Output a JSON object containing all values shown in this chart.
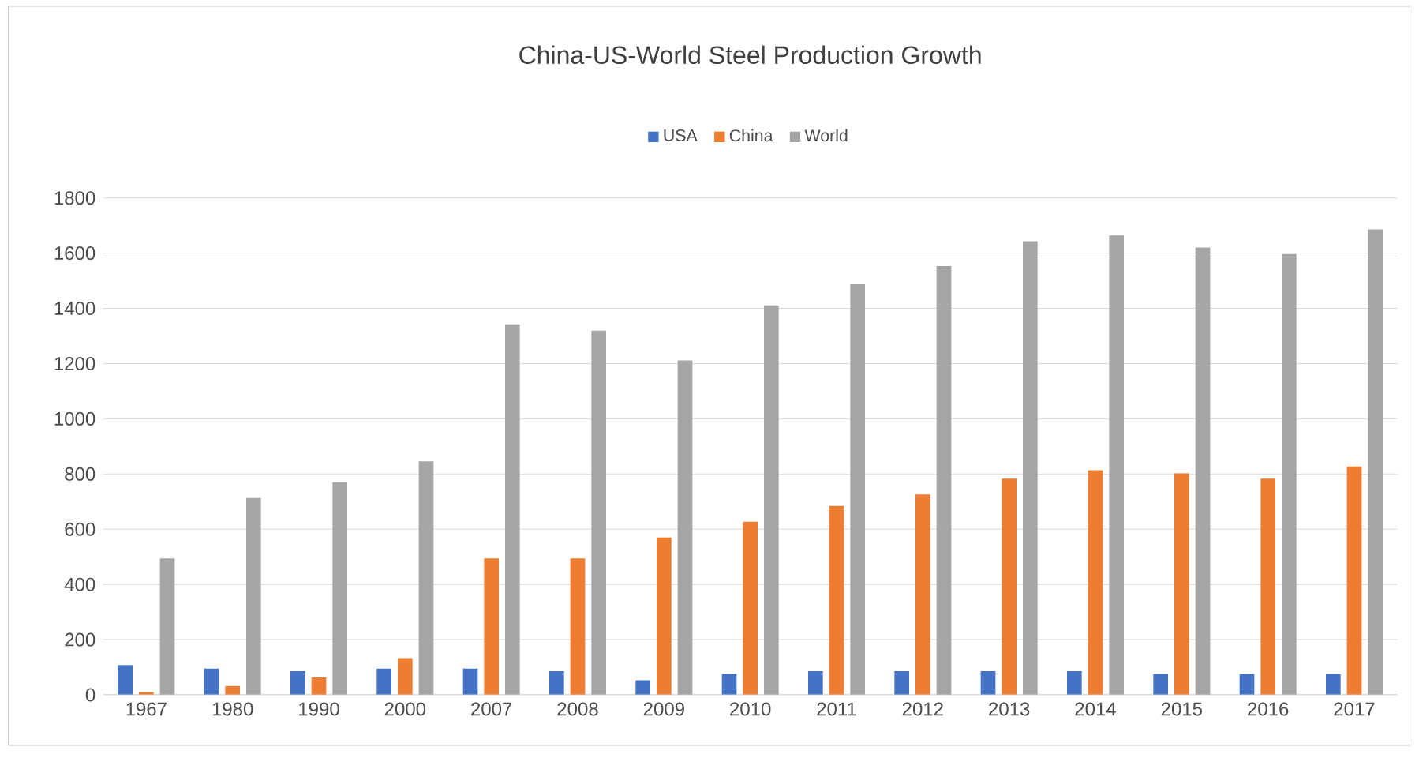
{
  "chart_data": {
    "type": "bar",
    "title": "China-US-World  Steel Production Growth",
    "categories": [
      "1967",
      "1980",
      "1990",
      "2000",
      "2007",
      "2008",
      "2009",
      "2010",
      "2011",
      "2012",
      "2013",
      "2014",
      "2015",
      "2016",
      "2017"
    ],
    "series": [
      {
        "name": "USA",
        "color": "#4472c4",
        "values": [
          108,
          95,
          86,
          95,
          95,
          86,
          53,
          76,
          86,
          86,
          86,
          86,
          76,
          76,
          76
        ]
      },
      {
        "name": "China",
        "color": "#ed7d31",
        "values": [
          10,
          32,
          63,
          133,
          494,
          494,
          570,
          627,
          684,
          726,
          783,
          814,
          802,
          783,
          827
        ]
      },
      {
        "name": "World",
        "color": "#a5a5a5",
        "values": [
          494,
          713,
          770,
          846,
          1342,
          1319,
          1211,
          1411,
          1487,
          1553,
          1643,
          1664,
          1620,
          1597,
          1686
        ]
      }
    ],
    "ylim": [
      0,
      1800
    ],
    "yticks": [
      0,
      200,
      400,
      600,
      800,
      1000,
      1200,
      1400,
      1600,
      1800
    ],
    "grid": "y",
    "legend": "top"
  }
}
